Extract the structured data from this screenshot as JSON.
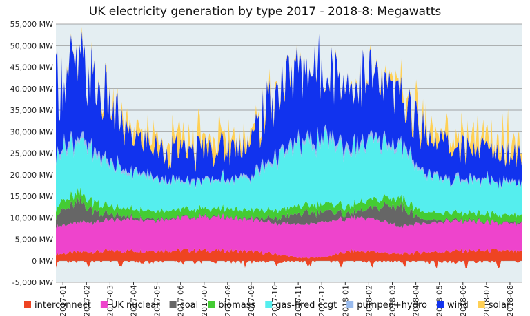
{
  "chart_data": {
    "type": "area",
    "stacked": true,
    "title": "UK electricity generation by type 2017 - 2018-8: Megawatts",
    "xlabel": "",
    "ylabel": "",
    "ylim": [
      -5000,
      55000
    ],
    "y_ticks": [
      "-5,000 MW",
      "0 MW",
      "5,000 MW",
      "10,000 MW",
      "15,000 MW",
      "20,000 MW",
      "25,000 MW",
      "30,000 MW",
      "35,000 MW",
      "40,000 MW",
      "45,000 MW",
      "50,000 MW",
      "55,000 MW"
    ],
    "y_tick_values": [
      -5000,
      0,
      5000,
      10000,
      15000,
      20000,
      25000,
      30000,
      35000,
      40000,
      45000,
      50000,
      55000
    ],
    "categories": [
      "2017-01",
      "2017-02",
      "2017-03",
      "2017-04",
      "2017-05",
      "2017-06",
      "2017-07",
      "2017-08",
      "2017-09",
      "2017-10",
      "2017-11",
      "2017-12",
      "2018-01",
      "2018-02",
      "2018-03",
      "2018-04",
      "2018-05",
      "2018-06",
      "2018-07",
      "2018-08"
    ],
    "grid": true,
    "legend_position": "bottom",
    "plot_background": "#e4eef2",
    "series": [
      {
        "name": "interconnect",
        "color": "#ee4422",
        "values": [
          1500,
          2000,
          2200,
          2300,
          2400,
          2400,
          2400,
          2300,
          2100,
          1500,
          600,
          900,
          2200,
          2100,
          1500,
          2000,
          2200,
          2300,
          2300,
          2000
        ]
      },
      {
        "name": "UK nuclear",
        "color": "#ee44cc",
        "values": [
          6500,
          6800,
          7000,
          7500,
          7200,
          7500,
          7700,
          7700,
          7500,
          7200,
          7800,
          8000,
          7800,
          7600,
          6500,
          6800,
          7000,
          6800,
          6300,
          6500
        ]
      },
      {
        "name": "coal",
        "color": "#666666",
        "values": [
          3000,
          4500,
          1500,
          500,
          300,
          200,
          200,
          200,
          300,
          1200,
          2500,
          2500,
          900,
          2500,
          5000,
          800,
          300,
          200,
          200,
          300
        ]
      },
      {
        "name": "biomass",
        "color": "#44cc33",
        "values": [
          2000,
          2200,
          2000,
          1800,
          1800,
          1800,
          1800,
          1800,
          1800,
          1800,
          1800,
          1800,
          1800,
          1900,
          2000,
          1800,
          1700,
          1700,
          1700,
          1700
        ]
      },
      {
        "name": "gas-fired ccgt",
        "color": "#55eeee",
        "values": [
          12000,
          12000,
          10000,
          8500,
          7500,
          6500,
          6200,
          6800,
          7500,
          12000,
          14000,
          14500,
          13000,
          13000,
          12000,
          9000,
          7500,
          7500,
          7500,
          7500
        ]
      },
      {
        "name": "pumped+hydro",
        "color": "#99bbee",
        "values": [
          1000,
          1000,
          800,
          600,
          500,
          450,
          450,
          450,
          600,
          900,
          1000,
          1100,
          1000,
          900,
          800,
          600,
          500,
          450,
          450,
          450
        ]
      },
      {
        "name": "wind",
        "color": "#1133ee",
        "values": [
          16500,
          16000,
          13500,
          8000,
          7000,
          6500,
          7000,
          7000,
          8000,
          15500,
          16500,
          16500,
          15000,
          13500,
          11000,
          9500,
          7500,
          6800,
          6500,
          7000
        ]
      },
      {
        "name": "solar",
        "color": "#ffd055",
        "values": [
          300,
          500,
          1500,
          4000,
          5000,
          5500,
          5000,
          4500,
          3000,
          1200,
          400,
          300,
          500,
          1000,
          2500,
          4000,
          5000,
          5500,
          5500,
          4500
        ]
      }
    ]
  }
}
